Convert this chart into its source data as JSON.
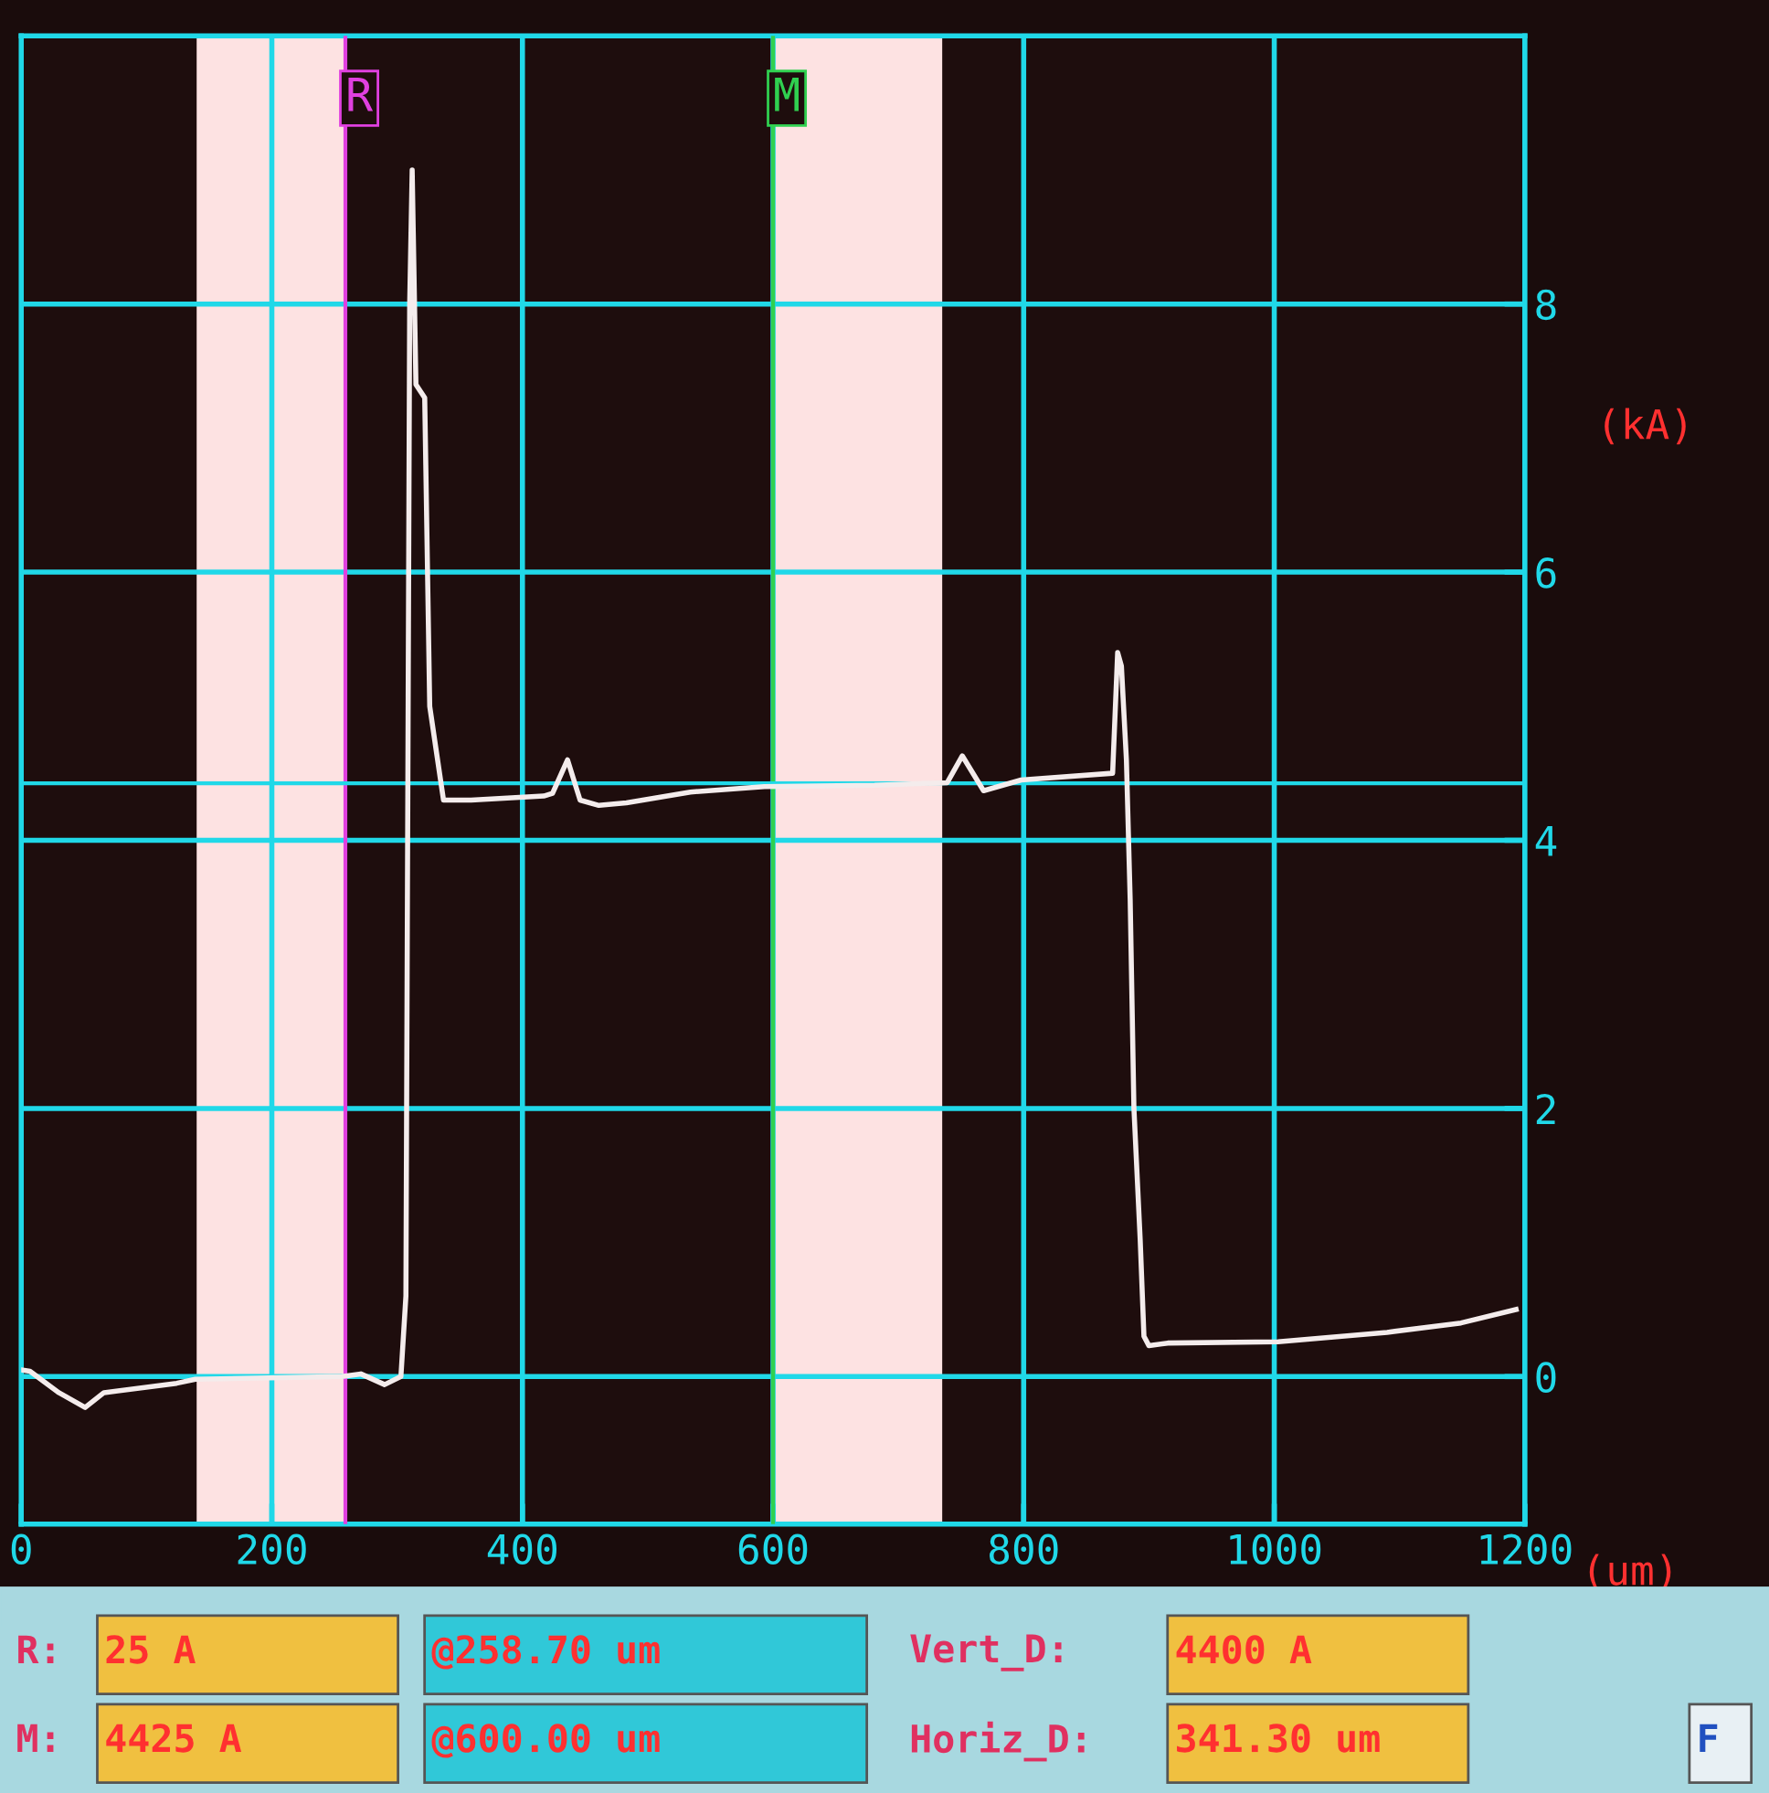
{
  "chart_data": [
    {
      "type": "line",
      "xlabel": "(um)",
      "ylabel": "(kA)",
      "xlim": [
        0,
        1200
      ],
      "xticks": [
        0,
        200,
        400,
        600,
        800,
        1000,
        1200
      ],
      "ylim": [
        -1.1,
        10
      ],
      "yticks": [
        0,
        2,
        4,
        6,
        8
      ],
      "grid": true,
      "series": [
        {
          "color": "#f4ecec",
          "x": [
            0,
            7,
            30,
            51,
            66,
            124,
            139,
            256,
            271,
            290,
            303,
            307,
            310,
            312,
            315,
            322,
            326,
            337,
            359,
            417,
            424,
            436,
            446,
            461,
            483,
            534,
            593,
            681,
            739,
            751,
            768,
            798,
            871,
            875,
            878,
            882,
            885,
            888,
            893,
            896,
            900,
            915,
            1003,
            1090,
            1149,
            1193
          ],
          "values": [
            0.05,
            0.04,
            -0.12,
            -0.23,
            -0.12,
            -0.05,
            -0.02,
            0.0,
            0.02,
            -0.06,
            0.0,
            0.6,
            8.0,
            9.0,
            7.4,
            7.3,
            5.0,
            4.3,
            4.3,
            4.33,
            4.35,
            4.6,
            4.3,
            4.26,
            4.28,
            4.36,
            4.4,
            4.41,
            4.43,
            4.63,
            4.37,
            4.45,
            4.5,
            5.4,
            5.3,
            4.6,
            3.56,
            2.0,
            1.02,
            0.3,
            0.23,
            0.25,
            0.26,
            0.33,
            0.4,
            0.5
          ]
        }
      ],
      "ref_lines": [
        {
          "axis": "x",
          "value": 258.7,
          "label": "R",
          "color": "#e040e0"
        },
        {
          "axis": "x",
          "value": 600,
          "label": "M",
          "color": "#30d050"
        },
        {
          "axis": "y",
          "value": 4.425,
          "label": null,
          "color": "#20d8e8"
        }
      ],
      "bands": [
        {
          "axis": "x",
          "from": 140,
          "to": 258.7,
          "label": null,
          "color": "#fde2e2"
        },
        {
          "axis": "x",
          "from": 600,
          "to": 735,
          "label": null,
          "color": "#fde2e2"
        }
      ]
    },
    {
      "type": "other",
      "annotations": [
        "R:",
        "25 A",
        "@258.70 um",
        "Vert_D:",
        "4400 A",
        "M:",
        "4425 A",
        "@600.00 um",
        "Horiz_D:",
        "341.30 um",
        "F"
      ]
    }
  ]
}
